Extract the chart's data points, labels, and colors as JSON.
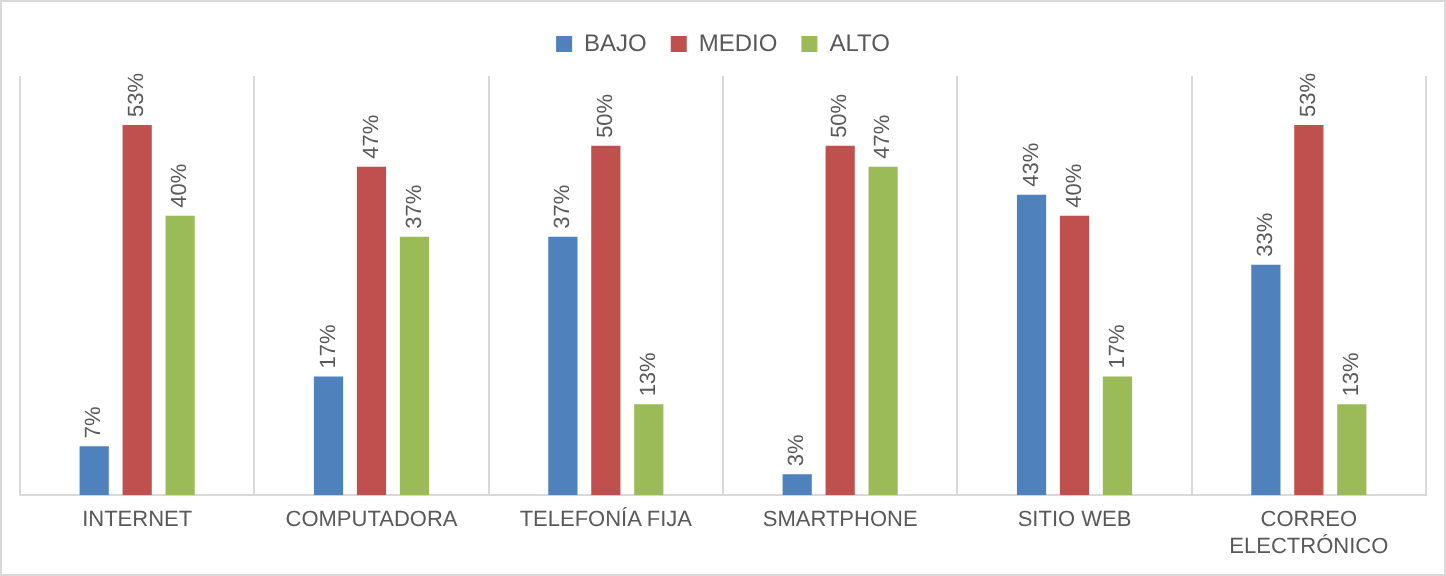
{
  "chart_data": {
    "type": "bar",
    "categories": [
      "INTERNET",
      "COMPUTADORA",
      "TELEFONÍA FIJA",
      "SMARTPHONE",
      "SITIO WEB",
      "CORREO ELECTRÓNICO"
    ],
    "series": [
      {
        "name": "BAJO",
        "color": "#4f81bd",
        "values": [
          7,
          17,
          37,
          3,
          43,
          33
        ],
        "value_labels": [
          "7%",
          "17%",
          "37%",
          "3%",
          "43%",
          "33%"
        ]
      },
      {
        "name": "MEDIO",
        "color": "#c0504d",
        "values": [
          53,
          47,
          50,
          50,
          40,
          53
        ],
        "value_labels": [
          "53%",
          "47%",
          "50%",
          "50%",
          "40%",
          "53%"
        ]
      },
      {
        "name": "ALTO",
        "color": "#9bbb59",
        "values": [
          40,
          37,
          13,
          47,
          17,
          13
        ],
        "value_labels": [
          "40%",
          "37%",
          "13%",
          "47%",
          "17%",
          "13%"
        ]
      }
    ],
    "ylim": [
      0,
      60
    ],
    "tick_labels": "x",
    "grid": "x",
    "legend": "top"
  }
}
